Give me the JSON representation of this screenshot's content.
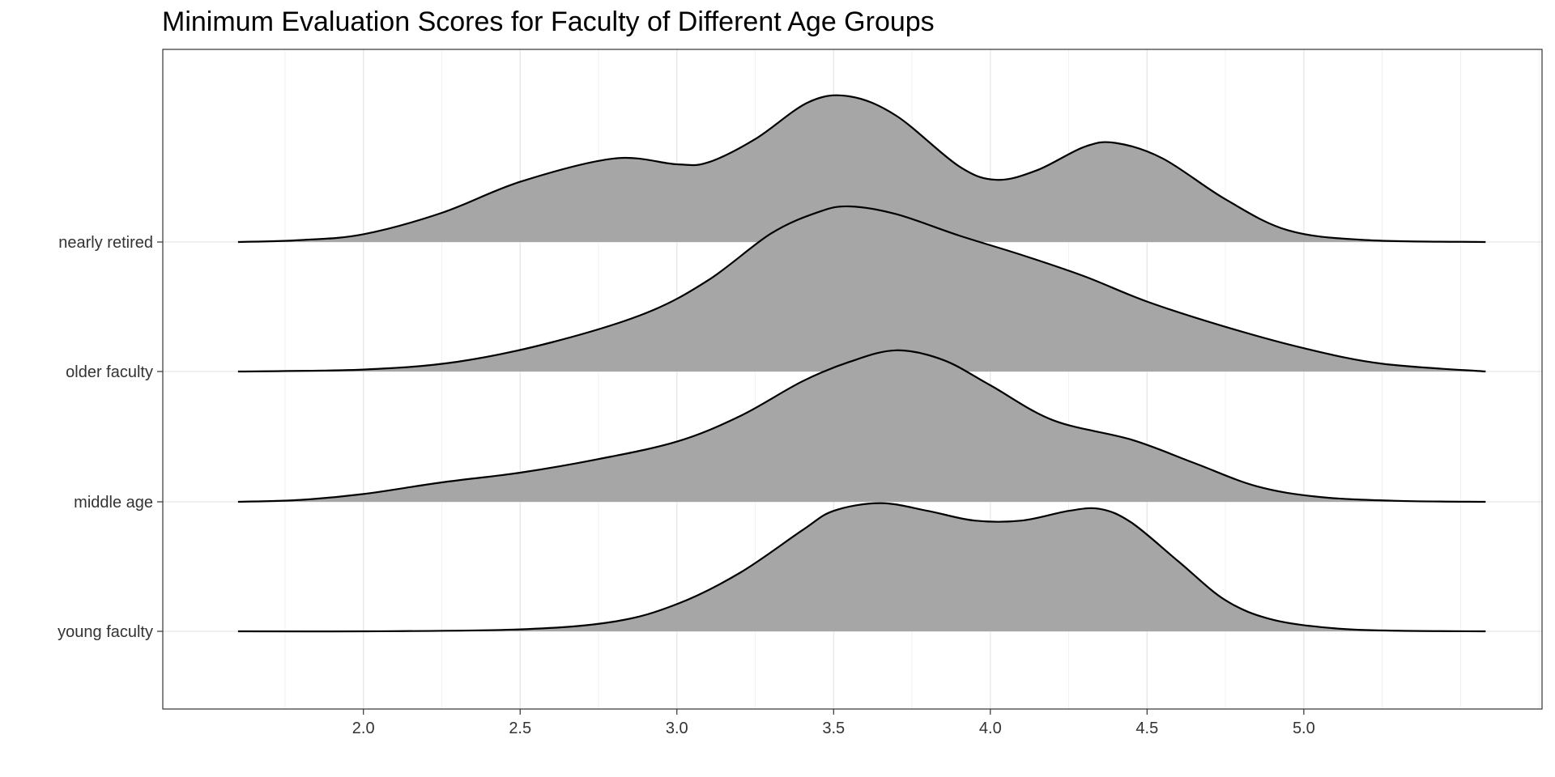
{
  "chart_data": {
    "type": "ridgeline",
    "title": "Minimum Evaluation Scores for Faculty of Different Age Groups",
    "xlabel": "",
    "ylabel": "",
    "xlim": [
      1.36,
      5.76
    ],
    "x_ticks": [
      "2.0",
      "2.5",
      "3.0",
      "3.5",
      "4.0",
      "4.5",
      "5.0"
    ],
    "x_range": [
      1.6,
      5.58
    ],
    "categories": [
      "young faculty",
      "middle age",
      "older faculty",
      "nearly retired"
    ],
    "grid": true,
    "fill_color": "#a6a6a6",
    "line_color": "#000000",
    "series": [
      {
        "name": "young faculty",
        "points": [
          [
            1.6,
            0.0
          ],
          [
            2.0,
            0.0
          ],
          [
            2.5,
            0.01
          ],
          [
            2.8,
            0.05
          ],
          [
            3.0,
            0.14
          ],
          [
            3.2,
            0.3
          ],
          [
            3.4,
            0.52
          ],
          [
            3.5,
            0.62
          ],
          [
            3.65,
            0.66
          ],
          [
            3.8,
            0.62
          ],
          [
            3.95,
            0.57
          ],
          [
            4.1,
            0.57
          ],
          [
            4.25,
            0.62
          ],
          [
            4.35,
            0.63
          ],
          [
            4.45,
            0.56
          ],
          [
            4.6,
            0.36
          ],
          [
            4.75,
            0.16
          ],
          [
            4.9,
            0.06
          ],
          [
            5.1,
            0.015
          ],
          [
            5.3,
            0.003
          ],
          [
            5.58,
            0.0
          ]
        ]
      },
      {
        "name": "middle age",
        "points": [
          [
            1.6,
            0.0
          ],
          [
            1.8,
            0.01
          ],
          [
            2.0,
            0.04
          ],
          [
            2.25,
            0.1
          ],
          [
            2.5,
            0.15
          ],
          [
            2.75,
            0.22
          ],
          [
            3.0,
            0.31
          ],
          [
            3.2,
            0.44
          ],
          [
            3.4,
            0.62
          ],
          [
            3.55,
            0.72
          ],
          [
            3.7,
            0.78
          ],
          [
            3.85,
            0.73
          ],
          [
            4.0,
            0.6
          ],
          [
            4.2,
            0.42
          ],
          [
            4.45,
            0.32
          ],
          [
            4.65,
            0.2
          ],
          [
            4.85,
            0.08
          ],
          [
            5.05,
            0.025
          ],
          [
            5.3,
            0.005
          ],
          [
            5.58,
            0.0
          ]
        ]
      },
      {
        "name": "older faculty",
        "points": [
          [
            1.6,
            0.0
          ],
          [
            2.0,
            0.01
          ],
          [
            2.3,
            0.05
          ],
          [
            2.6,
            0.15
          ],
          [
            2.9,
            0.3
          ],
          [
            3.1,
            0.47
          ],
          [
            3.3,
            0.71
          ],
          [
            3.45,
            0.82
          ],
          [
            3.55,
            0.85
          ],
          [
            3.7,
            0.81
          ],
          [
            3.9,
            0.7
          ],
          [
            4.1,
            0.6
          ],
          [
            4.3,
            0.49
          ],
          [
            4.5,
            0.36
          ],
          [
            4.75,
            0.23
          ],
          [
            5.0,
            0.12
          ],
          [
            5.25,
            0.04
          ],
          [
            5.58,
            0.0
          ]
        ]
      },
      {
        "name": "nearly retired",
        "points": [
          [
            1.6,
            0.0
          ],
          [
            1.8,
            0.01
          ],
          [
            2.0,
            0.04
          ],
          [
            2.25,
            0.15
          ],
          [
            2.5,
            0.31
          ],
          [
            2.8,
            0.43
          ],
          [
            3.0,
            0.4
          ],
          [
            3.1,
            0.41
          ],
          [
            3.25,
            0.53
          ],
          [
            3.42,
            0.72
          ],
          [
            3.55,
            0.75
          ],
          [
            3.7,
            0.65
          ],
          [
            3.9,
            0.39
          ],
          [
            4.02,
            0.32
          ],
          [
            4.15,
            0.37
          ],
          [
            4.3,
            0.49
          ],
          [
            4.4,
            0.51
          ],
          [
            4.55,
            0.43
          ],
          [
            4.75,
            0.22
          ],
          [
            4.95,
            0.06
          ],
          [
            5.2,
            0.01
          ],
          [
            5.58,
            0.0
          ]
        ]
      }
    ]
  }
}
